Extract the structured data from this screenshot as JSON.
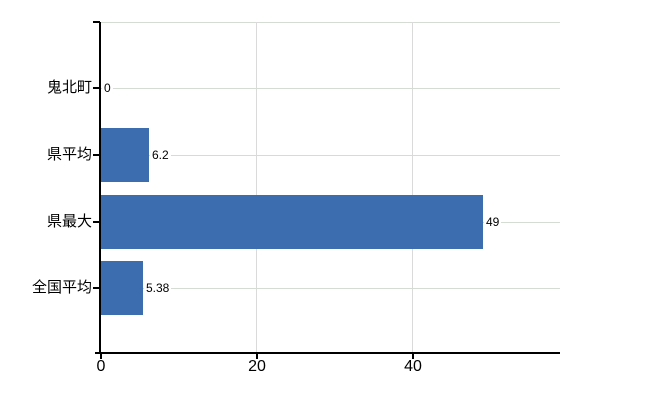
{
  "chart_data": {
    "type": "bar",
    "orientation": "horizontal",
    "title": "",
    "categories": [
      "鬼北町",
      "県平均",
      "県最大",
      "全国平均"
    ],
    "values": [
      0,
      6.2,
      49,
      5.38
    ],
    "value_labels": [
      "0",
      "6.2",
      "49",
      "5.38"
    ],
    "x_ticks": [
      0,
      20,
      40
    ],
    "xlim": [
      0,
      58.9
    ],
    "grid": true,
    "legend": "none",
    "bar_color": "#3C6DAE",
    "grid_color": "#D4DCD4",
    "vgrid_color": "#DADADA",
    "axis_color": "#000000",
    "text_color": "#000000",
    "background": "#FFFFFF"
  }
}
